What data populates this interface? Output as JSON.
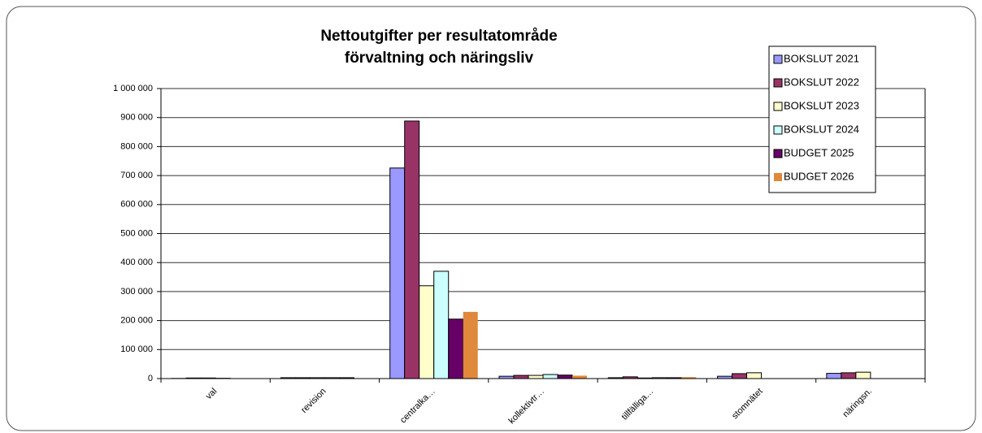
{
  "chart_data": {
    "type": "bar",
    "title": [
      "Nettoutgifter per resultatområde",
      "förvaltning och näringsliv"
    ],
    "categories": [
      "val",
      "revision",
      "centralka…",
      "kollektivtr…",
      "tillfälliga…",
      "stomnätet",
      "näringsn."
    ],
    "series": [
      {
        "name": "BOKSLUT 2021",
        "color": "#9999ff",
        "values": [
          500,
          3000,
          726000,
          8000,
          3000,
          8000,
          18000
        ]
      },
      {
        "name": "BOKSLUT 2022",
        "color": "#993366",
        "values": [
          2000,
          3000,
          888000,
          11000,
          6000,
          17000,
          20000
        ]
      },
      {
        "name": "BOKSLUT 2023",
        "color": "#ffffcc",
        "values": [
          2000,
          3000,
          320000,
          11000,
          2000,
          20000,
          22000
        ]
      },
      {
        "name": "BOKSLUT 2024",
        "color": "#ccffff",
        "values": [
          1000,
          3000,
          370000,
          14000,
          3000,
          0,
          0
        ]
      },
      {
        "name": "BUDGET 2025",
        "color": "#660066",
        "values": [
          0,
          3000,
          205000,
          12000,
          3000,
          0,
          0
        ]
      },
      {
        "name": "BUDGET 2026",
        "color": "#e0883c",
        "values": [
          0,
          1000,
          230000,
          10000,
          5000,
          0,
          0
        ]
      }
    ],
    "ylim": [
      0,
      1000000
    ],
    "yticks": [
      0,
      {
        "value": 100000,
        "label": "100 000"
      },
      {
        "value": 200000,
        "label": "200 000"
      },
      {
        "value": 300000,
        "label": "300 000"
      },
      {
        "value": 400000,
        "label": "400 000"
      },
      {
        "value": 500000,
        "label": "500 000"
      },
      {
        "value": 600000,
        "label": "600 000"
      },
      {
        "value": 700000,
        "label": "700 000"
      },
      {
        "value": 800000,
        "label": "800 000"
      },
      {
        "value": 900000,
        "label": "900 000"
      },
      {
        "value": 1000000,
        "label": "1 000 000"
      }
    ],
    "grid": true,
    "legend": "top-right"
  }
}
